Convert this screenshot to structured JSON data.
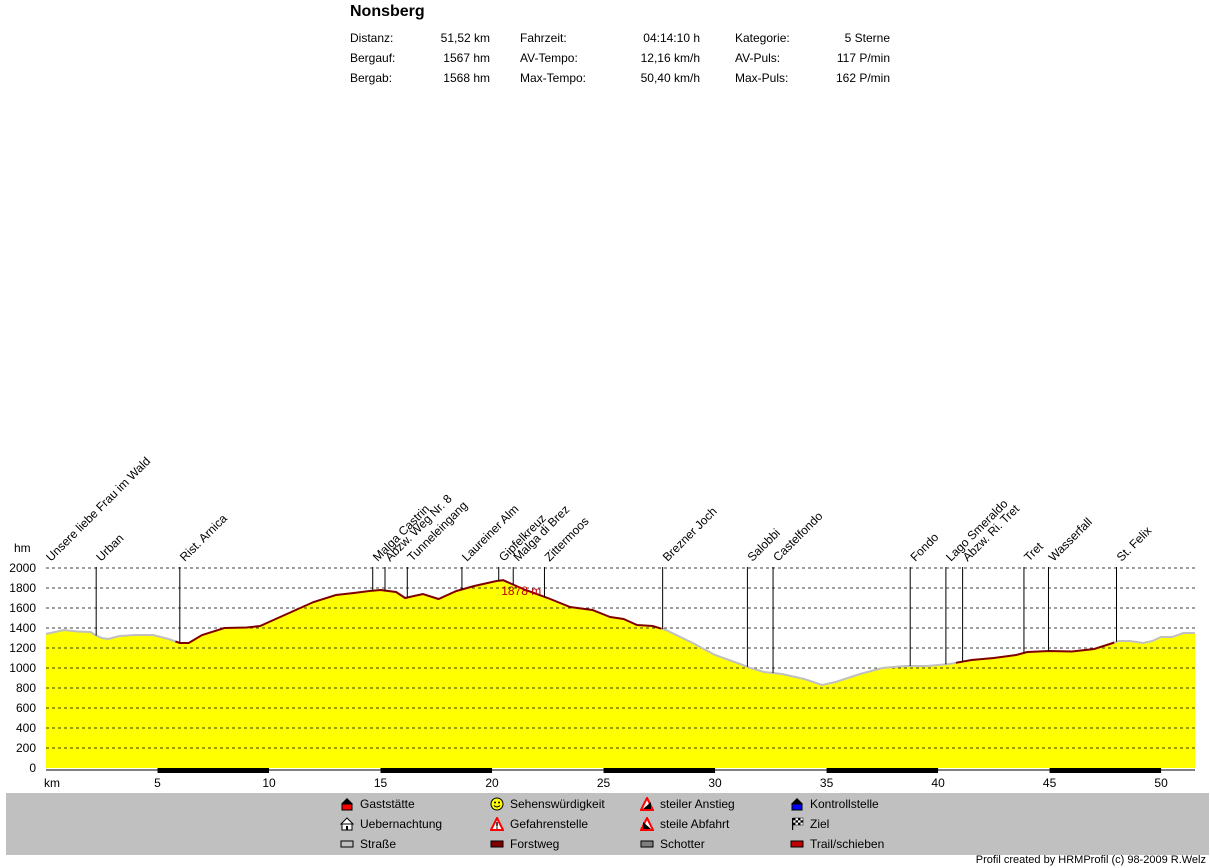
{
  "title": "Nonsberg",
  "stats": {
    "distanz_label": "Distanz:",
    "distanz_value": "51,52 km",
    "bergauf_label": "Bergauf:",
    "bergauf_value": "1567 hm",
    "bergab_label": "Bergab:",
    "bergab_value": "1568 hm",
    "fahrzeit_label": "Fahrzeit:",
    "fahrzeit_value": "04:14:10 h",
    "avtempo_label": "AV-Tempo:",
    "avtempo_value": "12,16 km/h",
    "maxtempo_label": "Max-Tempo:",
    "maxtempo_value": "50,40 km/h",
    "kategorie_label": "Kategorie:",
    "kategorie_value": "5 Sterne",
    "avpuls_label": "AV-Puls:",
    "avpuls_value": "117 P/min",
    "maxpuls_label": "Max-Puls:",
    "maxpuls_value": "162 P/min"
  },
  "chart_data": {
    "type": "area",
    "ylabel": "hm",
    "xlabel": "km",
    "xlim": [
      0,
      51.52
    ],
    "ylim": [
      0,
      2000
    ],
    "x_ticks": [
      5,
      10,
      15,
      20,
      25,
      30,
      35,
      40,
      45,
      50
    ],
    "y_ticks": [
      0,
      200,
      400,
      600,
      800,
      1000,
      1200,
      1400,
      1600,
      1800,
      2000
    ],
    "grid": true,
    "peak_label": "1878 m",
    "profile": [
      [
        0,
        1340
      ],
      [
        0.8,
        1380
      ],
      [
        1.4,
        1365
      ],
      [
        2.0,
        1360
      ],
      [
        2.2,
        1330
      ],
      [
        2.5,
        1300
      ],
      [
        2.8,
        1290
      ],
      [
        3.3,
        1320
      ],
      [
        4.0,
        1330
      ],
      [
        4.8,
        1330
      ],
      [
        5.5,
        1290
      ],
      [
        6.0,
        1250
      ],
      [
        6.4,
        1250
      ],
      [
        7.0,
        1330
      ],
      [
        8.0,
        1400
      ],
      [
        9.0,
        1405
      ],
      [
        9.6,
        1420
      ],
      [
        10.0,
        1460
      ],
      [
        11.0,
        1560
      ],
      [
        12.0,
        1660
      ],
      [
        13.0,
        1730
      ],
      [
        13.8,
        1750
      ],
      [
        14.5,
        1770
      ],
      [
        15.0,
        1780
      ],
      [
        15.7,
        1760
      ],
      [
        16.1,
        1700
      ],
      [
        16.5,
        1720
      ],
      [
        16.9,
        1740
      ],
      [
        17.6,
        1690
      ],
      [
        18.4,
        1770
      ],
      [
        19.2,
        1820
      ],
      [
        20.2,
        1870
      ],
      [
        20.5,
        1878
      ],
      [
        21.5,
        1780
      ],
      [
        22.5,
        1700
      ],
      [
        23.5,
        1610
      ],
      [
        24.5,
        1580
      ],
      [
        25.3,
        1510
      ],
      [
        25.9,
        1490
      ],
      [
        26.5,
        1430
      ],
      [
        27.2,
        1420
      ],
      [
        27.8,
        1380
      ],
      [
        29.0,
        1250
      ],
      [
        30.0,
        1130
      ],
      [
        31.0,
        1050
      ],
      [
        31.6,
        1000
      ],
      [
        32.2,
        960
      ],
      [
        33.0,
        940
      ],
      [
        34.0,
        890
      ],
      [
        34.8,
        830
      ],
      [
        35.4,
        860
      ],
      [
        36.5,
        940
      ],
      [
        37.5,
        1000
      ],
      [
        38.5,
        1020
      ],
      [
        39.5,
        1020
      ],
      [
        40.5,
        1040
      ],
      [
        41.5,
        1080
      ],
      [
        42.5,
        1100
      ],
      [
        43.5,
        1130
      ],
      [
        44.0,
        1160
      ],
      [
        45.0,
        1170
      ],
      [
        46.0,
        1165
      ],
      [
        47.0,
        1190
      ],
      [
        47.7,
        1240
      ],
      [
        48.1,
        1270
      ],
      [
        48.6,
        1270
      ],
      [
        49.2,
        1250
      ],
      [
        49.6,
        1270
      ],
      [
        50.0,
        1310
      ],
      [
        50.5,
        1310
      ],
      [
        51.0,
        1350
      ],
      [
        51.52,
        1350
      ]
    ],
    "surface_segments": [
      {
        "from": 0,
        "to": 5.8,
        "type": "Straße"
      },
      {
        "from": 5.8,
        "to": 27.6,
        "type": "Forstweg"
      },
      {
        "from": 27.6,
        "to": 40.8,
        "type": "Straße"
      },
      {
        "from": 40.8,
        "to": 47.9,
        "type": "Forstweg"
      },
      {
        "from": 47.9,
        "to": 51.52,
        "type": "Straße"
      }
    ],
    "waypoints": [
      {
        "km": 0,
        "label": "Unsere liebe Frau im Wald"
      },
      {
        "km": 2.25,
        "label": "Urban"
      },
      {
        "km": 6.0,
        "label": "Rist. Arnica"
      },
      {
        "km": 14.65,
        "label": "Malga Castrin"
      },
      {
        "km": 15.2,
        "label": "Abzw. Weg Nr. 8"
      },
      {
        "km": 16.2,
        "label": "Tunneleingang"
      },
      {
        "km": 18.65,
        "label": "Laureiner Alm"
      },
      {
        "km": 20.3,
        "label": "Gipfelkreuz"
      },
      {
        "km": 20.95,
        "label": "Malga di Brez"
      },
      {
        "km": 22.35,
        "label": "Zittermoos"
      },
      {
        "km": 27.65,
        "label": "Brezner Joch"
      },
      {
        "km": 31.45,
        "label": "Salobbi"
      },
      {
        "km": 32.6,
        "label": "Castelfondo"
      },
      {
        "km": 38.75,
        "label": "Fondo"
      },
      {
        "km": 40.35,
        "label": "Lago Smeraldo"
      },
      {
        "km": 41.1,
        "label": "Abzw. Ri. Tret"
      },
      {
        "km": 43.85,
        "label": "Tret"
      },
      {
        "km": 44.95,
        "label": "Wasserfall"
      },
      {
        "km": 48.0,
        "label": "St. Felix"
      }
    ]
  },
  "legend": {
    "items": [
      {
        "label": "Gaststätte",
        "icon": "gaststaette-icon"
      },
      {
        "label": "Uebernachtung",
        "icon": "house-icon"
      },
      {
        "label": "Straße",
        "icon": "road-swatch-icon"
      },
      {
        "label": "Sehenswürdigkeit",
        "icon": "smiley-icon"
      },
      {
        "label": "Gefahrenstelle",
        "icon": "warning-icon"
      },
      {
        "label": "Forstweg",
        "icon": "forest-road-swatch-icon"
      },
      {
        "label": "steiler Anstieg",
        "icon": "steep-climb-icon"
      },
      {
        "label": "steile Abfahrt",
        "icon": "steep-descent-icon"
      },
      {
        "label": "Schotter",
        "icon": "gravel-swatch-icon"
      },
      {
        "label": "Kontrollstelle",
        "icon": "checkpoint-icon"
      },
      {
        "label": "Ziel",
        "icon": "finish-flag-icon"
      },
      {
        "label": "Trail/schieben",
        "icon": "trail-swatch-icon"
      }
    ],
    "colors": {
      "fill": "#ffff00",
      "road": "#c0c0c0",
      "forstweg": "#800000",
      "schotter": "#808080",
      "trail": "#c00000",
      "marker_red": "#ff0000",
      "marker_blue": "#0000ff"
    }
  },
  "footer": "Profil created by HRMProfil (c) 98-2009 R.Welz"
}
